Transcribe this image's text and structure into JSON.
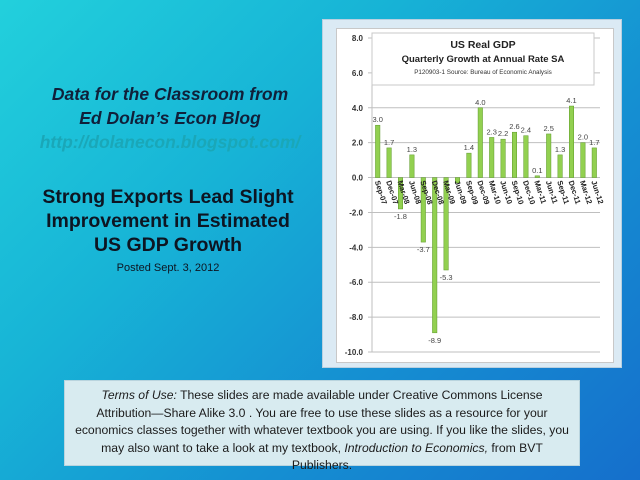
{
  "slide": {
    "title_line1": "Data for the Classroom from",
    "title_line2": "Ed Dolan’s Econ Blog",
    "url": "http://dolanecon.blogspot.com/",
    "headline_line1": "Strong Exports Lead Slight",
    "headline_line2": "Improvement in Estimated",
    "headline_line3": "US GDP Growth",
    "posted": "Posted  Sept. 3, 2012"
  },
  "terms": {
    "label": "Terms of Use:",
    "text1": " These slides are made available under Creative Commons License  Attribution—Share Alike 3.0 . You are free to use these slides as a resource for your economics classes together with whatever textbook you are using. If you like the slides, you may also want to take a look at my textbook, ",
    "book": "Introduction to Economics,",
    "text2": " from BVT Publishers."
  },
  "colors": {
    "bar_fill": "#92d050",
    "bar_stroke": "#5e9a2a",
    "gridline": "#bfbfbf",
    "axis_text": "#333333"
  },
  "chart_data": {
    "type": "bar",
    "title": "US  Real GDP",
    "subtitle": "Quarterly Growth at Annual Rate SA",
    "source": "P120903-1 Source: Bureau of Economic Analysis",
    "xlabel": "",
    "ylabel": "",
    "ylim": [
      -10.0,
      8.0
    ],
    "yticks": [
      "8.0",
      "6.0",
      "4.0",
      "2.0",
      "0.0",
      "-2.0",
      "-4.0",
      "-6.0",
      "-8.0",
      "-10.0"
    ],
    "grid": true,
    "legend": false,
    "categories": [
      "Sep-07",
      "Dec-07",
      "Mar-08",
      "Jun-08",
      "Sep-08",
      "Dec-08",
      "Mar-09",
      "Jun-09",
      "Sep-09",
      "Dec-09",
      "Mar-10",
      "Jun-10",
      "Sep-10",
      "Dec-10",
      "Mar-11",
      "Jun-11",
      "Sep-11",
      "Dec-11",
      "Mar-12",
      "Jun-12"
    ],
    "values": [
      3.0,
      1.7,
      -1.8,
      1.3,
      -3.7,
      -8.9,
      -5.3,
      -0.3,
      1.4,
      4.0,
      2.3,
      2.2,
      2.6,
      2.4,
      0.1,
      2.5,
      1.3,
      4.1,
      2.0,
      1.7
    ],
    "data_labels": [
      "3.0",
      "1.7",
      "-1.8",
      "1.3",
      "-3.7",
      "-8.9",
      "-5.3",
      "",
      "1.4",
      "4.0",
      "2.3",
      "2.2",
      "2.6",
      "2.4",
      "0.1",
      "2.5",
      "1.3",
      "4.1",
      "2.0",
      "1.7"
    ]
  }
}
